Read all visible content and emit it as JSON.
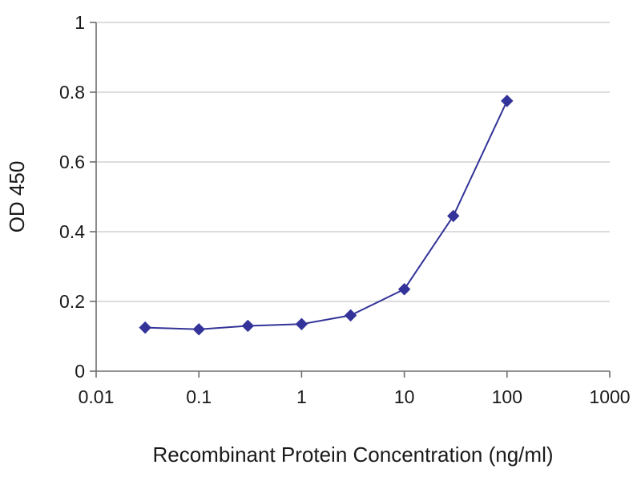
{
  "chart_data": {
    "type": "line",
    "title": "",
    "xlabel": "Recombinant Protein Concentration (ng/ml)",
    "ylabel": "OD 450",
    "x_scale": "log",
    "xlim": [
      0.01,
      1000
    ],
    "ylim": [
      0,
      1
    ],
    "x_ticks": [
      0.01,
      0.1,
      1,
      10,
      100,
      1000
    ],
    "x_tick_labels": [
      "0.01",
      "0.1",
      "1",
      "10",
      "100",
      "1000"
    ],
    "y_ticks": [
      0,
      0.2,
      0.4,
      0.6,
      0.8,
      1
    ],
    "y_tick_labels": [
      "0",
      "0.2",
      "0.4",
      "0.6",
      "0.8",
      "1"
    ],
    "grid": "horizontal",
    "legend": "none",
    "series": [
      {
        "name": "OD 450",
        "marker": "diamond",
        "color": "#333399",
        "x": [
          0.03,
          0.1,
          0.3,
          1,
          3,
          10,
          30,
          100
        ],
        "y": [
          0.125,
          0.12,
          0.13,
          0.135,
          0.16,
          0.235,
          0.445,
          0.775
        ]
      }
    ]
  },
  "colors": {
    "line": "#333399",
    "grid": "#c6c6c6",
    "axis": "#6e6e6e",
    "text": "#1a1a1a",
    "background": "#ffffff"
  }
}
